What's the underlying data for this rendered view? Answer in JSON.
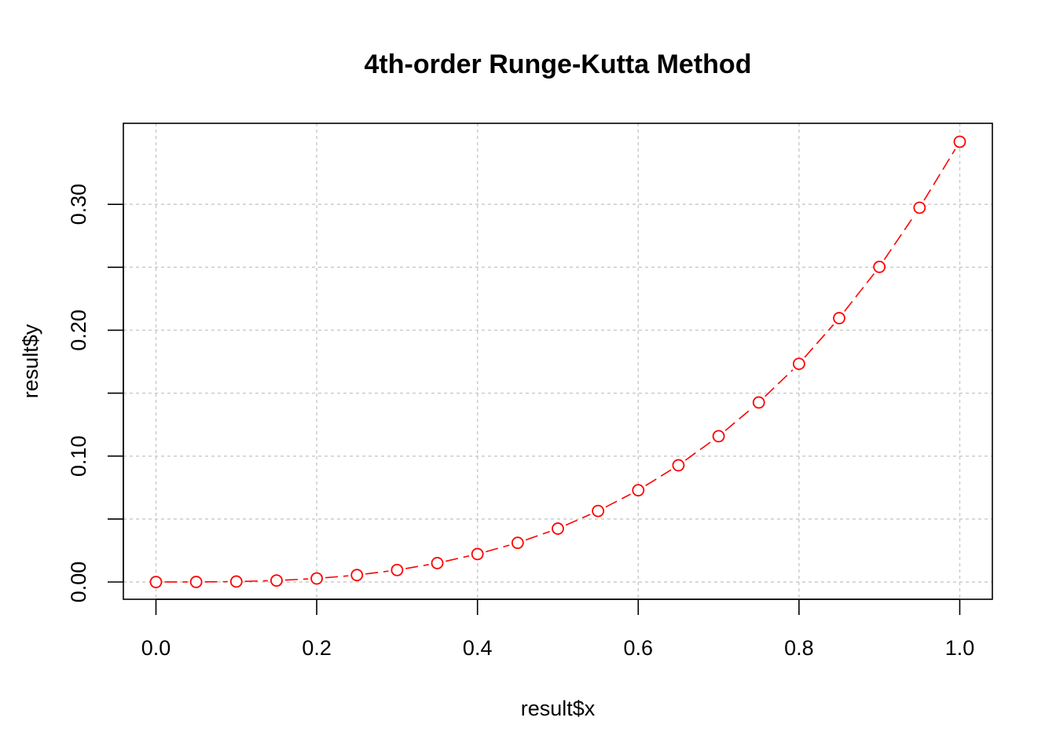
{
  "chart_data": {
    "type": "line",
    "title": "4th-order Runge-Kutta Method",
    "xlabel": "result$x",
    "ylabel": "result$y",
    "xlim": [
      0.0,
      1.0
    ],
    "ylim": [
      0.0,
      0.35
    ],
    "x_ticks": [
      0.0,
      0.2,
      0.4,
      0.6,
      0.8,
      1.0
    ],
    "x_tick_labels": [
      "0.0",
      "0.2",
      "0.4",
      "0.6",
      "0.8",
      "1.0"
    ],
    "y_ticks": [
      0.0,
      0.05,
      0.1,
      0.15,
      0.2,
      0.25,
      0.3
    ],
    "y_tick_labels": [
      "0.00",
      "",
      "0.10",
      "",
      "0.20",
      "",
      "0.30"
    ],
    "grid": true,
    "line_style": "dashed",
    "marker": "open-circle",
    "series": [
      {
        "color": "#ff0000",
        "x": [
          0.0,
          0.05,
          0.1,
          0.15,
          0.2,
          0.25,
          0.3,
          0.35,
          0.4,
          0.45,
          0.5,
          0.55,
          0.6,
          0.65,
          0.7,
          0.75,
          0.8,
          0.85,
          0.9,
          0.95,
          1.0
        ],
        "y": [
          0.0,
          4e-05,
          0.00034,
          0.00116,
          0.0028,
          0.0055,
          0.0095,
          0.015,
          0.0222,
          0.0311,
          0.0424,
          0.0564,
          0.0729,
          0.0927,
          0.1158,
          0.1426,
          0.1733,
          0.2096,
          0.2503,
          0.2973,
          0.3497
        ]
      }
    ]
  }
}
